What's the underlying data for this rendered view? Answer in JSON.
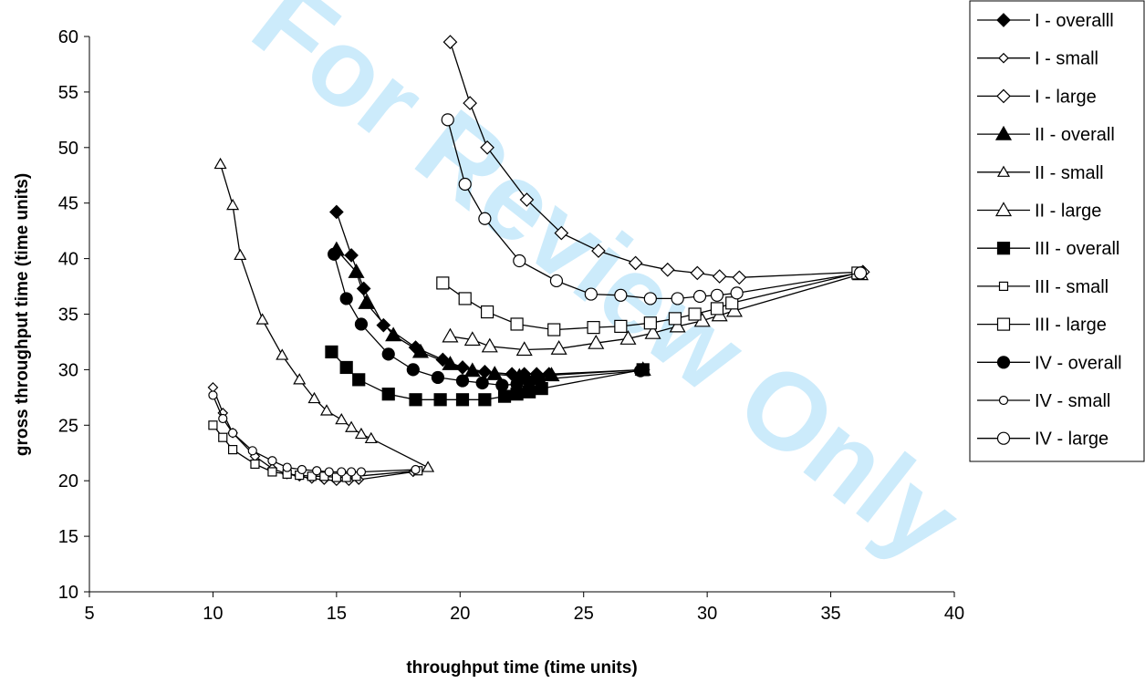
{
  "watermark": "For Review Only",
  "chart_data": {
    "type": "scatter",
    "title": "",
    "xlabel": "throughput time (time units)",
    "ylabel": "gross throughput time (time units)",
    "xlim": [
      5,
      40
    ],
    "ylim": [
      10,
      60
    ],
    "xticks": [
      5,
      10,
      15,
      20,
      25,
      30,
      35,
      40
    ],
    "yticks": [
      10,
      15,
      20,
      25,
      30,
      35,
      40,
      45,
      50,
      55,
      60
    ],
    "grid": false,
    "legend_position": "right",
    "series": [
      {
        "name": "I - overalll",
        "marker": "diamond",
        "filled": true,
        "size": "normal",
        "x": [
          15.0,
          15.6,
          16.1,
          16.9,
          18.2,
          19.3,
          20.1,
          21.0,
          22.1,
          22.6,
          23.1,
          23.6,
          27.4
        ],
        "y": [
          44.2,
          40.3,
          37.3,
          34.0,
          32.0,
          30.9,
          30.2,
          29.8,
          29.6,
          29.6,
          29.6,
          29.6,
          30.0
        ]
      },
      {
        "name": "I - small",
        "marker": "diamond",
        "filled": false,
        "size": "small",
        "x": [
          10.0,
          10.4,
          10.8,
          11.7,
          12.4,
          13.0,
          13.5,
          14.0,
          14.5,
          15.0,
          15.5,
          15.9,
          18.1
        ],
        "y": [
          28.4,
          26.1,
          24.3,
          22.2,
          21.1,
          20.6,
          20.4,
          20.2,
          20.1,
          20.0,
          20.0,
          20.1,
          20.8
        ]
      },
      {
        "name": "I - large",
        "marker": "diamond",
        "filled": false,
        "size": "normal",
        "x": [
          19.6,
          20.4,
          21.1,
          22.7,
          24.1,
          25.6,
          27.1,
          28.4,
          29.6,
          30.5,
          31.3,
          36.3
        ],
        "y": [
          59.5,
          54.0,
          50.0,
          45.3,
          42.3,
          40.7,
          39.6,
          39.0,
          38.7,
          38.4,
          38.3,
          38.8
        ]
      },
      {
        "name": "II - overall",
        "marker": "triangle",
        "filled": true,
        "size": "normal",
        "x": [
          15.0,
          15.8,
          16.2,
          17.3,
          18.4,
          19.6,
          20.5,
          21.4,
          22.4,
          23.1,
          23.7,
          27.4
        ],
        "y": [
          40.8,
          38.8,
          36.0,
          33.1,
          31.6,
          30.5,
          29.9,
          29.6,
          29.4,
          29.4,
          29.5,
          30.0
        ]
      },
      {
        "name": "II - small",
        "marker": "triangle",
        "filled": false,
        "size": "small",
        "x": [
          10.3,
          10.8,
          11.1,
          12.0,
          12.8,
          13.5,
          14.1,
          14.6,
          15.2,
          15.6,
          16.0,
          16.4,
          18.7
        ],
        "y": [
          48.5,
          44.8,
          40.3,
          34.5,
          31.3,
          29.1,
          27.4,
          26.3,
          25.5,
          24.8,
          24.2,
          23.8,
          21.2
        ]
      },
      {
        "name": "II - large",
        "marker": "triangle",
        "filled": false,
        "size": "normal",
        "x": [
          19.6,
          20.5,
          21.2,
          22.6,
          24.0,
          25.5,
          26.8,
          27.8,
          28.8,
          29.8,
          30.5,
          31.1,
          36.2
        ],
        "y": [
          33.0,
          32.7,
          32.1,
          31.8,
          31.9,
          32.4,
          32.8,
          33.3,
          33.9,
          34.4,
          34.9,
          35.3,
          38.6
        ]
      },
      {
        "name": "III - overall",
        "marker": "square",
        "filled": true,
        "size": "normal",
        "x": [
          14.8,
          15.4,
          15.9,
          17.1,
          18.2,
          19.2,
          20.1,
          21.0,
          21.8,
          22.3,
          22.8,
          23.3,
          27.4
        ],
        "y": [
          31.6,
          30.2,
          29.1,
          27.8,
          27.3,
          27.3,
          27.3,
          27.3,
          27.6,
          27.8,
          28.0,
          28.3,
          30.0
        ]
      },
      {
        "name": "III - small",
        "marker": "square",
        "filled": false,
        "size": "small",
        "x": [
          10.0,
          10.4,
          10.8,
          11.7,
          12.4,
          13.0,
          13.5,
          14.0,
          14.5,
          15.0,
          15.4,
          15.8,
          18.3
        ],
        "y": [
          25.0,
          23.9,
          22.8,
          21.5,
          20.8,
          20.6,
          20.5,
          20.4,
          20.4,
          20.3,
          20.3,
          20.4,
          20.9
        ]
      },
      {
        "name": "III - large",
        "marker": "square",
        "filled": false,
        "size": "normal",
        "x": [
          19.3,
          20.2,
          21.1,
          22.3,
          23.8,
          25.4,
          26.5,
          27.7,
          28.7,
          29.5,
          30.4,
          31.0,
          36.1
        ],
        "y": [
          37.8,
          36.4,
          35.2,
          34.1,
          33.6,
          33.8,
          33.9,
          34.2,
          34.6,
          35.0,
          35.5,
          36.0,
          38.7
        ]
      },
      {
        "name": "IV - overall",
        "marker": "circle",
        "filled": true,
        "size": "normal",
        "x": [
          14.9,
          15.4,
          16.0,
          17.1,
          18.1,
          19.1,
          20.1,
          20.9,
          21.7,
          22.3,
          22.8,
          23.2,
          27.3
        ],
        "y": [
          40.4,
          36.4,
          34.1,
          31.4,
          30.0,
          29.3,
          29.0,
          28.8,
          28.6,
          28.7,
          28.9,
          29.1,
          29.9
        ]
      },
      {
        "name": "IV - small",
        "marker": "circle",
        "filled": false,
        "size": "small",
        "x": [
          10.0,
          10.4,
          10.8,
          11.6,
          12.4,
          13.0,
          13.6,
          14.2,
          14.7,
          15.2,
          15.6,
          16.0,
          18.2
        ],
        "y": [
          27.7,
          25.6,
          24.3,
          22.7,
          21.8,
          21.2,
          21.0,
          20.9,
          20.8,
          20.8,
          20.8,
          20.8,
          21.0
        ]
      },
      {
        "name": "IV - large",
        "marker": "circle",
        "filled": false,
        "size": "normal",
        "x": [
          19.5,
          20.2,
          21.0,
          22.4,
          23.9,
          25.3,
          26.5,
          27.7,
          28.8,
          29.7,
          30.4,
          31.2,
          36.2
        ],
        "y": [
          52.5,
          46.7,
          43.6,
          39.8,
          38.0,
          36.8,
          36.7,
          36.4,
          36.4,
          36.6,
          36.7,
          36.9,
          38.7
        ]
      }
    ]
  }
}
